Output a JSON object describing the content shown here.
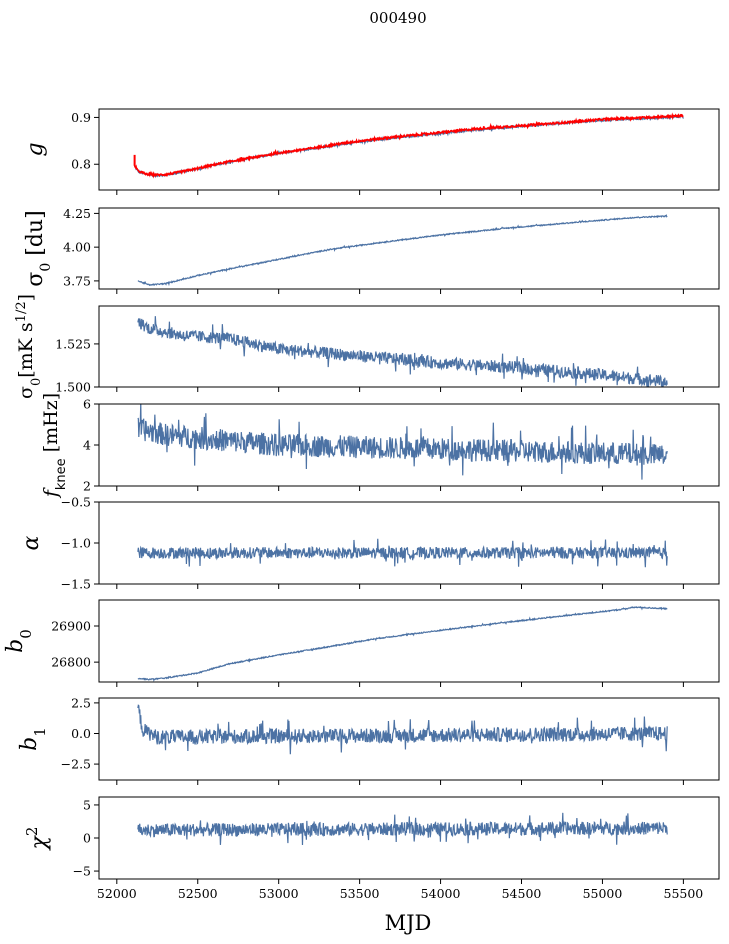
{
  "figure": {
    "title": "000490",
    "xlabel": "MJD"
  },
  "colors": {
    "series": "#4c72a4",
    "fit": "#ff0000",
    "axes": "#000000"
  },
  "chart_data": [
    {
      "type": "line",
      "ylabel": "g",
      "xlim": [
        51890,
        55720
      ],
      "ylim": [
        0.745,
        0.918
      ],
      "yticks": [
        0.8,
        0.9
      ],
      "ytick_labels": [
        "0.8",
        "0.9"
      ],
      "show_xticklabels": false,
      "series": [
        {
          "x": [
            52110,
            52130,
            52180,
            52240,
            52300,
            52400,
            52500,
            52600,
            52700,
            52800,
            53000,
            53200,
            53400,
            53600,
            53800,
            54000,
            54200,
            54400,
            54600,
            54800,
            55000,
            55200,
            55400,
            55500
          ],
          "y": [
            0.795,
            0.785,
            0.778,
            0.776,
            0.777,
            0.783,
            0.79,
            0.798,
            0.805,
            0.811,
            0.823,
            0.833,
            0.843,
            0.852,
            0.859,
            0.866,
            0.872,
            0.878,
            0.884,
            0.889,
            0.894,
            0.897,
            0.9,
            0.902
          ],
          "noise": 0.002,
          "color": "series"
        },
        {
          "x": [
            52110,
            52130,
            52180,
            52240,
            52300,
            52400,
            52500,
            52600,
            52700,
            52800,
            53000,
            53200,
            53400,
            53600,
            53800,
            54000,
            54200,
            54400,
            54600,
            54800,
            55000,
            55200,
            55400,
            55500
          ],
          "y": [
            0.797,
            0.786,
            0.779,
            0.777,
            0.778,
            0.784,
            0.791,
            0.799,
            0.806,
            0.812,
            0.824,
            0.834,
            0.845,
            0.854,
            0.861,
            0.868,
            0.875,
            0.88,
            0.885,
            0.89,
            0.896,
            0.899,
            0.902,
            0.904
          ],
          "noise": 0.002,
          "spike_at_start": 0.82,
          "color": "fit"
        }
      ]
    },
    {
      "type": "line",
      "ylabel": "σ0 [du]",
      "xlim": [
        51890,
        55720
      ],
      "ylim": [
        3.69,
        4.29
      ],
      "yticks": [
        3.75,
        4.0,
        4.25
      ],
      "ytick_labels": [
        "3.75",
        "4.00",
        "4.25"
      ],
      "show_xticklabels": false,
      "series": [
        {
          "x": [
            52130,
            52200,
            52300,
            52500,
            52700,
            53000,
            53300,
            53600,
            54000,
            54400,
            54800,
            55200,
            55400
          ],
          "y": [
            3.75,
            3.72,
            3.73,
            3.79,
            3.84,
            3.91,
            3.98,
            4.03,
            4.09,
            4.14,
            4.18,
            4.22,
            4.23
          ],
          "noise": 0.004,
          "color": "series"
        }
      ]
    },
    {
      "type": "line",
      "ylabel": "σ0[mK s1/2]",
      "xlim": [
        51890,
        55720
      ],
      "ylim": [
        1.5,
        1.547
      ],
      "yticks": [
        1.5,
        1.525
      ],
      "ytick_labels": [
        "1.500",
        "1.525"
      ],
      "show_xticklabels": false,
      "series": [
        {
          "x": [
            52130,
            52200,
            52400,
            52700,
            53000,
            53500,
            54000,
            54500,
            55000,
            55200,
            55400
          ],
          "y": [
            1.538,
            1.534,
            1.53,
            1.528,
            1.522,
            1.518,
            1.514,
            1.511,
            1.507,
            1.505,
            1.503
          ],
          "noise": 0.0035,
          "color": "series"
        }
      ]
    },
    {
      "type": "line",
      "ylabel": "fknee [mHz]",
      "xlim": [
        51890,
        55720
      ],
      "ylim": [
        2,
        6
      ],
      "yticks": [
        2,
        4,
        6
      ],
      "ytick_labels": [
        "2",
        "4",
        "6"
      ],
      "show_xticklabels": false,
      "series": [
        {
          "x": [
            52130,
            52300,
            52700,
            53000,
            53500,
            54000,
            54500,
            55000,
            55400
          ],
          "y": [
            4.8,
            4.5,
            4.2,
            4.0,
            3.9,
            3.8,
            3.7,
            3.6,
            3.5
          ],
          "noise": 0.55,
          "color": "series"
        }
      ]
    },
    {
      "type": "line",
      "ylabel": "α",
      "xlim": [
        51890,
        55720
      ],
      "ylim": [
        -1.5,
        -0.5
      ],
      "yticks": [
        -1.5,
        -1.0,
        -0.5
      ],
      "ytick_labels": [
        "−1.5",
        "−1.0",
        "−0.5"
      ],
      "show_xticklabels": false,
      "series": [
        {
          "x": [
            52130,
            55400
          ],
          "y": [
            -1.12,
            -1.12
          ],
          "noise": 0.07,
          "color": "series"
        }
      ]
    },
    {
      "type": "line",
      "ylabel": "b0",
      "xlim": [
        51890,
        55720
      ],
      "ylim": [
        26745,
        26972
      ],
      "yticks": [
        26800,
        26900
      ],
      "ytick_labels": [
        "26800",
        "26900"
      ],
      "show_xticklabels": false,
      "series": [
        {
          "x": [
            52130,
            52200,
            52300,
            52500,
            52700,
            53000,
            53300,
            53600,
            54000,
            54400,
            54800,
            55100,
            55200,
            55400
          ],
          "y": [
            26755,
            26752,
            26756,
            26770,
            26796,
            26820,
            26842,
            26865,
            26888,
            26910,
            26930,
            26945,
            26952,
            26948
          ],
          "noise": 1.5,
          "color": "series"
        }
      ]
    },
    {
      "type": "line",
      "ylabel": "b1",
      "xlim": [
        51890,
        55720
      ],
      "ylim": [
        -3.8,
        2.9
      ],
      "yticks": [
        -2.5,
        0.0,
        2.5
      ],
      "ytick_labels": [
        "−2.5",
        "0.0",
        "2.5"
      ],
      "show_xticklabels": false,
      "series": [
        {
          "x": [
            52130,
            52160,
            52250,
            55400
          ],
          "y": [
            2.2,
            0.3,
            -0.3,
            0.0
          ],
          "noise": 0.6,
          "color": "series"
        }
      ]
    },
    {
      "type": "line",
      "ylabel": "χ2",
      "xlim": [
        51890,
        55720
      ],
      "ylim": [
        -6.2,
        6.2
      ],
      "yticks": [
        -5,
        0,
        5
      ],
      "ytick_labels": [
        "−5",
        "0",
        "5"
      ],
      "show_xticklabels": true,
      "xticks": [
        52000,
        52500,
        53000,
        53500,
        54000,
        54500,
        55000,
        55500
      ],
      "xtick_labels": [
        "52000",
        "52500",
        "53000",
        "53500",
        "54000",
        "54500",
        "55000",
        "55500"
      ],
      "series": [
        {
          "x": [
            52130,
            55400
          ],
          "y": [
            1.2,
            1.5
          ],
          "noise": 1.0,
          "color": "series"
        }
      ]
    }
  ]
}
